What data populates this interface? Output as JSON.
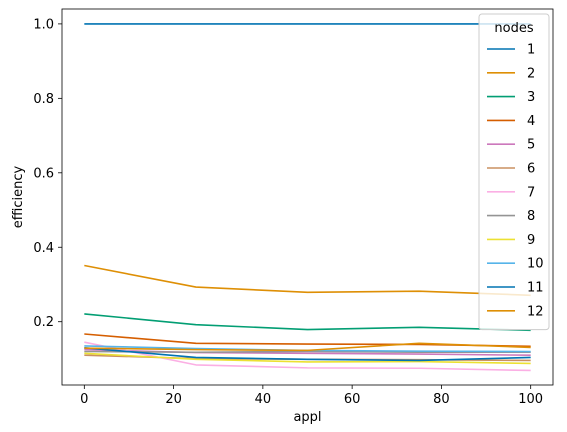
{
  "chart_data": {
    "type": "line",
    "title": "",
    "xlabel": "appl",
    "ylabel": "efficiency",
    "x": [
      0,
      25,
      50,
      75,
      100
    ],
    "xlim": [
      -5,
      105
    ],
    "ylim": [
      0.03,
      1.04
    ],
    "xticks": [
      "0",
      "20",
      "40",
      "60",
      "80",
      "100"
    ],
    "yticks": [
      "0.2",
      "0.4",
      "0.6",
      "0.8",
      "1.0"
    ],
    "grid": false,
    "legend": {
      "title": "nodes",
      "placement": "top-right"
    },
    "series": [
      {
        "name": "1",
        "color": "#0173b2",
        "values": [
          1.0,
          1.0,
          1.0,
          1.0,
          1.0
        ]
      },
      {
        "name": "2",
        "color": "#de8f05",
        "values": [
          0.351,
          0.293,
          0.279,
          0.282,
          0.271
        ]
      },
      {
        "name": "3",
        "color": "#029e73",
        "values": [
          0.221,
          0.192,
          0.179,
          0.185,
          0.177
        ]
      },
      {
        "name": "4",
        "color": "#d55e00",
        "values": [
          0.167,
          0.142,
          0.14,
          0.139,
          0.134
        ]
      },
      {
        "name": "5",
        "color": "#cc78bc",
        "values": [
          0.125,
          0.117,
          0.115,
          0.113,
          0.11
        ]
      },
      {
        "name": "6",
        "color": "#ca9161",
        "values": [
          0.11,
          0.101,
          0.099,
          0.098,
          0.096
        ]
      },
      {
        "name": "7",
        "color": "#fbafe4",
        "values": [
          0.145,
          0.084,
          0.076,
          0.075,
          0.069
        ]
      },
      {
        "name": "8",
        "color": "#949494",
        "values": [
          0.12,
          0.118,
          0.12,
          0.118,
          0.118
        ]
      },
      {
        "name": "9",
        "color": "#ece133",
        "values": [
          0.115,
          0.099,
          0.092,
          0.093,
          0.088
        ]
      },
      {
        "name": "10",
        "color": "#56b4e9",
        "values": [
          0.135,
          0.128,
          0.123,
          0.121,
          0.12
        ]
      },
      {
        "name": "11",
        "color": "#0173b2",
        "values": [
          0.13,
          0.104,
          0.099,
          0.096,
          0.104
        ]
      },
      {
        "name": "12",
        "color": "#de8f05",
        "values": [
          0.129,
          0.125,
          0.123,
          0.142,
          0.131
        ]
      }
    ]
  }
}
